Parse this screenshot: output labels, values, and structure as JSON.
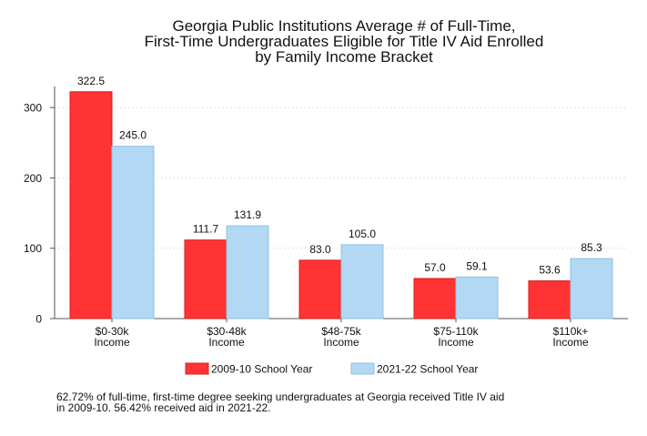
{
  "chart_data": {
    "type": "bar",
    "title": [
      "Georgia Public Institutions Average # of Full-Time,",
      "First-Time Undergraduates Eligible for Title IV Aid Enrolled",
      "by Family Income Bracket"
    ],
    "categories": [
      [
        "$0-30k",
        "Income"
      ],
      [
        "$30-48k",
        "Income"
      ],
      [
        "$48-75k",
        "Income"
      ],
      [
        "$75-110k",
        "Income"
      ],
      [
        "$110k+",
        "Income"
      ]
    ],
    "series": [
      {
        "name": "2009-10 School Year",
        "color": "#ff3333",
        "stroke": "#d91d1d",
        "values": [
          322.5,
          111.7,
          83.0,
          57.0,
          53.6
        ],
        "labels": [
          "322.5",
          "111.7",
          "83.0",
          "57.0",
          "53.6"
        ]
      },
      {
        "name": "2021-22 School Year",
        "color": "#b3d8f3",
        "stroke": "#8fc1e7",
        "values": [
          245.0,
          131.9,
          105.0,
          59.1,
          85.3
        ],
        "labels": [
          "245.0",
          "131.9",
          "105.0",
          "59.1",
          "85.3"
        ]
      }
    ],
    "ylim": [
      0,
      330
    ],
    "yticks": [
      0,
      100,
      200,
      300
    ],
    "ytick_labels": [
      "0",
      "100",
      "200",
      "300"
    ],
    "grid": "horizontal-dotted",
    "legend_position": "bottom",
    "xlabel": "",
    "ylabel": ""
  },
  "footnote": [
    "62.72% of full-time, first-time degree seeking undergraduates at Georgia received Title IV aid",
    "in 2009-10. 56.42% received aid in 2021-22."
  ]
}
